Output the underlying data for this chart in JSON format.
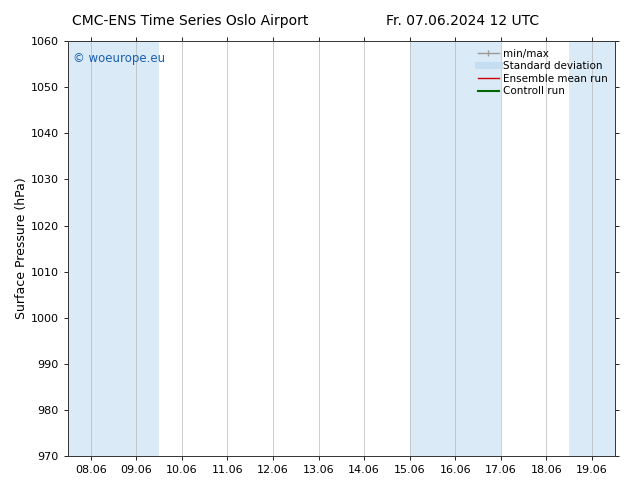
{
  "title_left": "CMC-ENS Time Series Oslo Airport",
  "title_right": "Fr. 07.06.2024 12 UTC",
  "ylabel": "Surface Pressure (hPa)",
  "ylim": [
    970,
    1060
  ],
  "yticks": [
    970,
    980,
    990,
    1000,
    1010,
    1020,
    1030,
    1040,
    1050,
    1060
  ],
  "xtick_labels": [
    "08.06",
    "09.06",
    "10.06",
    "11.06",
    "12.06",
    "13.06",
    "14.06",
    "15.06",
    "16.06",
    "17.06",
    "18.06",
    "19.06"
  ],
  "x_positions": [
    0,
    1,
    2,
    3,
    4,
    5,
    6,
    7,
    8,
    9,
    10,
    11
  ],
  "shaded_bands": [
    {
      "x_start": -0.5,
      "x_end": 0.5,
      "color": "#daeaf6"
    },
    {
      "x_start": 0.5,
      "x_end": 1.5,
      "color": "#daeaf6"
    },
    {
      "x_start": 7.0,
      "x_end": 8.0,
      "color": "#daeaf6"
    },
    {
      "x_start": 8.0,
      "x_end": 9.0,
      "color": "#daeaf6"
    },
    {
      "x_start": 10.5,
      "x_end": 11.5,
      "color": "#daeaf6"
    }
  ],
  "watermark_text": "© woeurope.eu",
  "watermark_color": "#1a5fb4",
  "legend_items": [
    {
      "label": "min/max",
      "color": "#999999",
      "lw": 1.0,
      "ls": "-",
      "type": "errorbar"
    },
    {
      "label": "Standard deviation",
      "color": "#c5ddf0",
      "lw": 5,
      "ls": "-",
      "type": "line"
    },
    {
      "label": "Ensemble mean run",
      "color": "#cc0000",
      "lw": 1.0,
      "ls": "-",
      "type": "line"
    },
    {
      "label": "Controll run",
      "color": "#006600",
      "lw": 1.5,
      "ls": "-",
      "type": "line"
    }
  ],
  "bg_color": "#ffffff",
  "plot_bg_color": "#ffffff",
  "title_fontsize": 10,
  "tick_fontsize": 8,
  "ylabel_fontsize": 9,
  "xlim": [
    -0.5,
    11.5
  ]
}
